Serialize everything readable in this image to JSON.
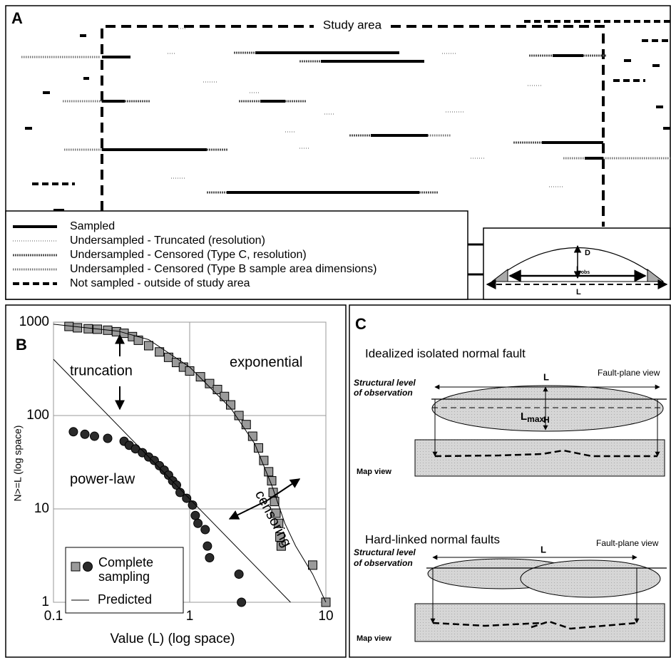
{
  "panel_a": {
    "label": "A",
    "study_area": "Study area",
    "legend": [
      "Sampled",
      "Undersampled - Truncated (resolution)",
      "Undersampled - Censored (Type C, resolution)",
      "Undersampled - Censored (Type B sample area dimensions)",
      "Not sampled - outside of study area"
    ],
    "inset": {
      "depth": "D",
      "observed_length": {
        "main": "L",
        "sub": "obs"
      },
      "length": "L"
    }
  },
  "chart_data": {
    "type": "scatter",
    "label": "B",
    "x_label": "Value (L) (log space)",
    "y_label": "N>=L (log space)",
    "log_x": true,
    "log_y": true,
    "grid": true,
    "xlim": [
      0.1,
      10
    ],
    "ylim": [
      1,
      1000
    ],
    "xticks": [
      0.1,
      1,
      10
    ],
    "yticks": [
      1,
      10,
      100,
      1000
    ],
    "annotations": [
      "truncation",
      "exponential",
      "power-law",
      "censoring"
    ],
    "series": [
      {
        "name": "Complete sampling",
        "marker": "square",
        "color": "#9a9a9a",
        "x": [
          0.13,
          0.15,
          0.18,
          0.21,
          0.25,
          0.29,
          0.33,
          0.38,
          0.42,
          0.5,
          0.6,
          0.7,
          0.8,
          0.9,
          1.0,
          1.2,
          1.4,
          1.6,
          1.8,
          2.0,
          2.3,
          2.6,
          2.9,
          3.2,
          3.5,
          3.8,
          4.0,
          4.1,
          4.2,
          4.3,
          4.5,
          4.6,
          4.7,
          8,
          10
        ],
        "values": [
          900,
          870,
          850,
          840,
          820,
          790,
          760,
          700,
          640,
          560,
          480,
          420,
          370,
          330,
          300,
          260,
          220,
          190,
          160,
          130,
          100,
          80,
          60,
          45,
          33,
          25,
          20,
          15,
          12,
          9,
          7,
          5,
          4,
          2.5,
          1
        ]
      },
      {
        "marker": "circle",
        "color": "#2a2a2a",
        "x": [
          0.14,
          0.17,
          0.2,
          0.25,
          0.33,
          0.36,
          0.4,
          0.45,
          0.5,
          0.55,
          0.6,
          0.65,
          0.7,
          0.75,
          0.8,
          0.85,
          0.95,
          1.05,
          1.1,
          1.15,
          1.3,
          1.35,
          1.4,
          2.3,
          2.4
        ],
        "values": [
          67,
          63,
          60,
          57,
          53,
          48,
          44,
          40,
          36,
          33,
          29,
          26,
          23,
          20,
          18,
          15,
          13,
          11,
          8.5,
          7,
          6,
          4,
          3,
          2,
          1
        ]
      },
      {
        "name": "Predicted",
        "marker": "line",
        "color": "#000000",
        "x": [
          0.1,
          5.5
        ],
        "values": [
          400,
          1
        ]
      },
      {
        "marker": "line",
        "color": "#000000",
        "x": [
          0.1,
          0.3,
          0.5,
          1,
          2,
          3,
          4,
          5,
          6,
          8,
          10
        ],
        "values": [
          950,
          800,
          650,
          330,
          120,
          50,
          18,
          7,
          4,
          2,
          1
        ]
      }
    ]
  },
  "panel_c": {
    "label": "C",
    "isolated": {
      "title": "Idealized isolated normal fault",
      "fault_plane": "Fault-plane view",
      "level": [
        "Structural level",
        "of observation"
      ],
      "length": "L",
      "max_length": {
        "main": "L",
        "sub": "max"
      },
      "height": "H",
      "map": "Map view"
    },
    "linked": {
      "title": "Hard-linked normal faults",
      "fault_plane": "Fault-plane view",
      "level": [
        "Structural level",
        "of observation"
      ],
      "length": "L",
      "map": "Map view"
    }
  }
}
